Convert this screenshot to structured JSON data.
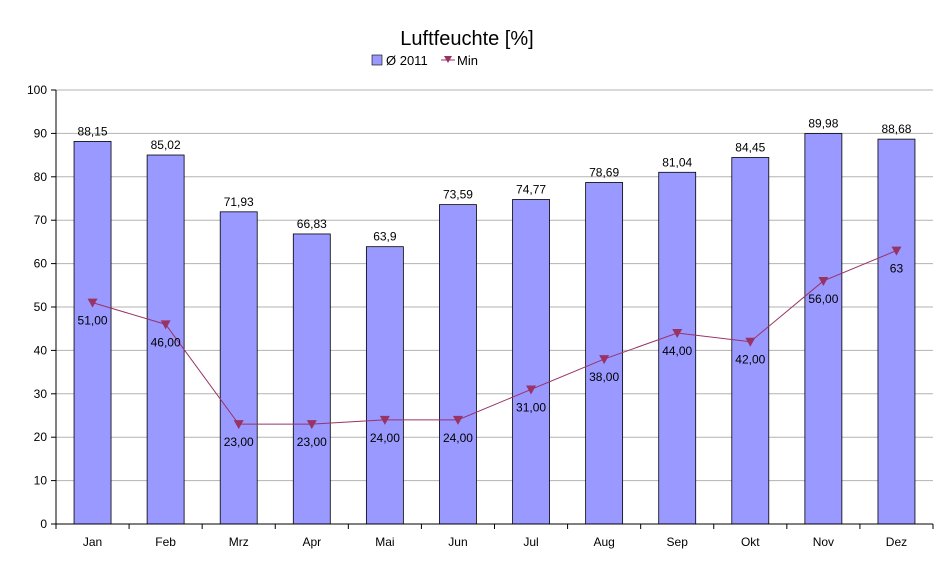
{
  "chart_data": {
    "type": "bar",
    "title": "Luftfeuchte [%]",
    "categories": [
      "Jan",
      "Feb",
      "Mrz",
      "Apr",
      "Mai",
      "Jun",
      "Jul",
      "Aug",
      "Sep",
      "Okt",
      "Nov",
      "Dez"
    ],
    "series": [
      {
        "name": "Ø 2011",
        "type": "bar",
        "color": "#9999ff",
        "values": [
          88.15,
          85.02,
          71.93,
          66.83,
          63.9,
          73.59,
          74.77,
          78.69,
          81.04,
          84.45,
          89.98,
          88.68
        ],
        "labels": [
          "88,15",
          "85,02",
          "71,93",
          "66,83",
          "63,9",
          "73,59",
          "74,77",
          "78,69",
          "81,04",
          "84,45",
          "89,98",
          "88,68"
        ]
      },
      {
        "name": "Min",
        "type": "line",
        "marker": "triangle-down",
        "color": "#993366",
        "values": [
          51,
          46,
          23,
          23,
          24,
          24,
          31,
          38,
          44,
          42,
          56,
          63
        ],
        "labels": [
          "51,00",
          "46,00",
          "23,00",
          "23,00",
          "24,00",
          "24,00",
          "31,00",
          "38,00",
          "44,00",
          "42,00",
          "56,00",
          "63"
        ]
      }
    ],
    "ylim": [
      0,
      100
    ],
    "yticks": [
      0,
      10,
      20,
      30,
      40,
      50,
      60,
      70,
      80,
      90,
      100
    ],
    "grid": true,
    "legend": "top-center",
    "xlabel": "",
    "ylabel": ""
  }
}
